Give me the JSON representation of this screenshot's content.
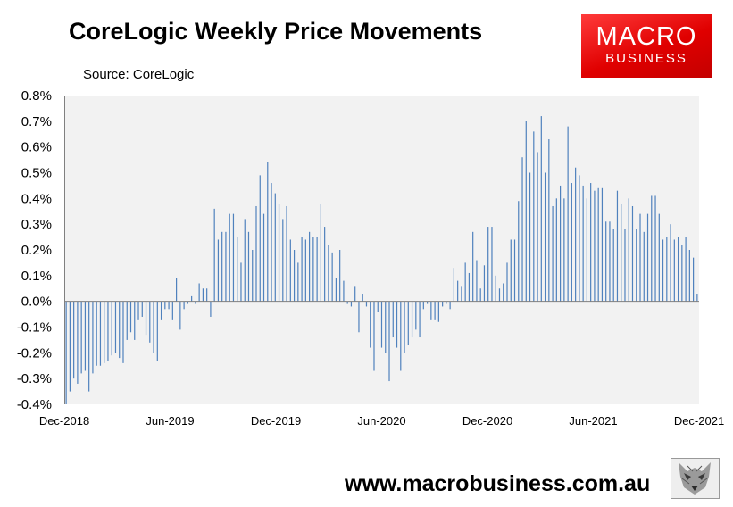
{
  "header": {
    "title": "CoreLogic Weekly Price Movements",
    "source": "Source: CoreLogic",
    "logo_line1": "MACRO",
    "logo_line2": "BUSINESS",
    "website": "www.macrobusiness.com.au"
  },
  "chart_data": {
    "type": "bar",
    "title": "CoreLogic Weekly Price Movements",
    "subtitle": "Source: CoreLogic",
    "xlabel": "",
    "ylabel": "",
    "x_range": [
      "Dec-2018",
      "Dec-2021"
    ],
    "ylim": [
      -0.4,
      0.8
    ],
    "y_ticks": [
      "-0.4%",
      "-0.3%",
      "-0.2%",
      "-0.1%",
      "0.0%",
      "0.1%",
      "0.2%",
      "0.3%",
      "0.4%",
      "0.5%",
      "0.6%",
      "0.7%",
      "0.8%"
    ],
    "x_ticks": [
      "Dec-2018",
      "Jun-2019",
      "Dec-2019",
      "Jun-2020",
      "Dec-2020",
      "Jun-2021",
      "Dec-2021"
    ],
    "grid": false,
    "bar_color": "#4f81bd",
    "plot_background": "#f2f2f2",
    "values": [
      -0.4,
      -0.35,
      -0.3,
      -0.32,
      -0.28,
      -0.27,
      -0.35,
      -0.28,
      -0.25,
      -0.25,
      -0.24,
      -0.23,
      -0.21,
      -0.2,
      -0.22,
      -0.24,
      -0.15,
      -0.12,
      -0.15,
      -0.07,
      -0.06,
      -0.13,
      -0.16,
      -0.2,
      -0.23,
      -0.07,
      -0.03,
      -0.03,
      -0.07,
      0.09,
      -0.11,
      -0.03,
      -0.01,
      0.02,
      -0.01,
      0.07,
      0.05,
      0.05,
      -0.06,
      0.36,
      0.24,
      0.27,
      0.27,
      0.34,
      0.34,
      0.25,
      0.15,
      0.32,
      0.27,
      0.2,
      0.37,
      0.49,
      0.34,
      0.54,
      0.46,
      0.42,
      0.38,
      0.32,
      0.37,
      0.24,
      0.2,
      0.15,
      0.25,
      0.24,
      0.27,
      0.25,
      0.25,
      0.38,
      0.29,
      0.22,
      0.19,
      0.09,
      0.2,
      0.08,
      -0.01,
      -0.02,
      0.06,
      -0.12,
      0.03,
      -0.02,
      -0.18,
      -0.27,
      -0.04,
      -0.18,
      -0.2,
      -0.31,
      -0.14,
      -0.18,
      -0.27,
      -0.2,
      -0.17,
      -0.14,
      -0.11,
      -0.14,
      -0.03,
      -0.01,
      -0.07,
      -0.07,
      -0.08,
      -0.02,
      -0.01,
      -0.03,
      0.13,
      0.08,
      0.06,
      0.15,
      0.11,
      0.27,
      0.16,
      0.05,
      0.14,
      0.29,
      0.29,
      0.1,
      0.05,
      0.07,
      0.15,
      0.24,
      0.24,
      0.39,
      0.56,
      0.7,
      0.5,
      0.66,
      0.58,
      0.72,
      0.5,
      0.63,
      0.37,
      0.4,
      0.45,
      0.4,
      0.68,
      0.46,
      0.52,
      0.49,
      0.45,
      0.4,
      0.46,
      0.43,
      0.44,
      0.44,
      0.31,
      0.31,
      0.28,
      0.43,
      0.38,
      0.28,
      0.4,
      0.37,
      0.28,
      0.34,
      0.27,
      0.34,
      0.41,
      0.41,
      0.34,
      0.24,
      0.25,
      0.3,
      0.24,
      0.25,
      0.22,
      0.25,
      0.2,
      0.17,
      0.03
    ]
  }
}
